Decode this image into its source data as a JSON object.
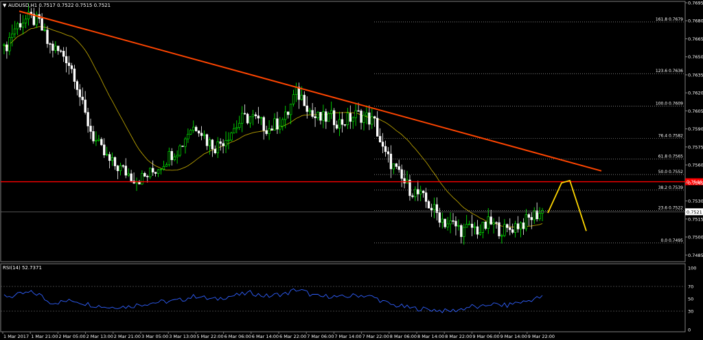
{
  "header": {
    "symbol_label": "AUDUSD,H1  0.7517 0.7522 0.7515 0.7521",
    "rsi_label": "RSI(14) 52.7371"
  },
  "colors": {
    "background": "#000000",
    "bull_candle": "#00ff00",
    "bear_candle": "#ffffff",
    "moving_average": "#b8a000",
    "trendline": "#ff4500",
    "horizontal_level": "#ff0000",
    "projection": "#ffd700",
    "rsi_line": "#3060ff",
    "price_box": "#ff0000"
  },
  "chart_data": {
    "type": "candlestick",
    "symbol": "AUDUSD",
    "timeframe": "H1",
    "ohlc_header": {
      "open": 0.7517,
      "high": 0.7522,
      "low": 0.7515,
      "close": 0.7521
    },
    "current_price": 0.7521,
    "ylim": [
      0.748,
      0.7695
    ],
    "y_ticks": [
      0.7695,
      0.768,
      0.7665,
      0.765,
      0.7635,
      0.762,
      0.7605,
      0.759,
      0.7575,
      0.756,
      0.7545,
      0.753,
      0.7515,
      0.75,
      0.7485
    ],
    "x_labels": [
      "1 Mar 2017",
      "1 Mar 21:00",
      "2 Mar 05:00",
      "2 Mar 13:00",
      "2 Mar 21:00",
      "3 Mar 05:00",
      "3 Mar 13:00",
      "5 Mar 22:00",
      "6 Mar 06:00",
      "6 Mar 14:00",
      "6 Mar 22:00",
      "7 Mar 06:00",
      "7 Mar 14:00",
      "7 Mar 22:00",
      "8 Mar 06:00",
      "8 Mar 14:00",
      "8 Mar 22:00",
      "9 Mar 06:00",
      "9 Mar 14:00",
      "9 Mar 22:00"
    ],
    "close_path": [
      0.7655,
      0.7672,
      0.768,
      0.7682,
      0.7678,
      0.766,
      0.7655,
      0.765,
      0.7635,
      0.7605,
      0.7585,
      0.7572,
      0.7562,
      0.7558,
      0.7553,
      0.7548,
      0.755,
      0.7555,
      0.7562,
      0.757,
      0.7575,
      0.759,
      0.7593,
      0.758,
      0.7575,
      0.7582,
      0.759,
      0.7598,
      0.76,
      0.7595,
      0.759,
      0.7595,
      0.76,
      0.762,
      0.7615,
      0.76,
      0.7598,
      0.76,
      0.7595,
      0.7598,
      0.7602,
      0.76,
      0.7595,
      0.757,
      0.756,
      0.7548,
      0.754,
      0.7535,
      0.7528,
      0.752,
      0.7512,
      0.751,
      0.7505,
      0.7508,
      0.7505,
      0.7512,
      0.7507,
      0.7505,
      0.751,
      0.7512,
      0.7518,
      0.7521
    ],
    "fibonacci_levels": [
      {
        "label": "161.8",
        "price": 0.7679
      },
      {
        "label": "123.6",
        "price": 0.7636
      },
      {
        "label": "100.0",
        "price": 0.7609
      },
      {
        "label": "76.4",
        "price": 0.7582
      },
      {
        "label": "61.8",
        "price": 0.7565
      },
      {
        "label": "50.0",
        "price": 0.7552
      },
      {
        "label": "38.2",
        "price": 0.7539
      },
      {
        "label": "23.6",
        "price": 0.7522
      },
      {
        "label": "0.0",
        "price": 0.7495
      }
    ],
    "horizontal_level": {
      "price": 0.7546,
      "label": "0.7546"
    },
    "trendline": {
      "from_price": 0.7688,
      "to_price": 0.7555
    },
    "projection_prices": [
      0.752,
      0.7545,
      0.7547,
      0.7505
    ],
    "rsi": {
      "period": 14,
      "value": 52.7371,
      "ylim": [
        0,
        100
      ],
      "levels": [
        100,
        70,
        50,
        30,
        0
      ],
      "series": [
        55,
        54,
        58,
        60,
        57,
        45,
        44,
        46,
        47,
        43,
        40,
        38,
        36,
        38,
        37,
        40,
        42,
        44,
        45,
        46,
        48,
        52,
        55,
        50,
        49,
        53,
        55,
        57,
        60,
        56,
        54,
        57,
        58,
        65,
        62,
        55,
        53,
        55,
        52,
        54,
        56,
        55,
        52,
        45,
        40,
        38,
        35,
        34,
        33,
        32,
        30,
        31,
        34,
        38,
        35,
        42,
        40,
        39,
        44,
        45,
        50,
        52.7
      ]
    }
  }
}
